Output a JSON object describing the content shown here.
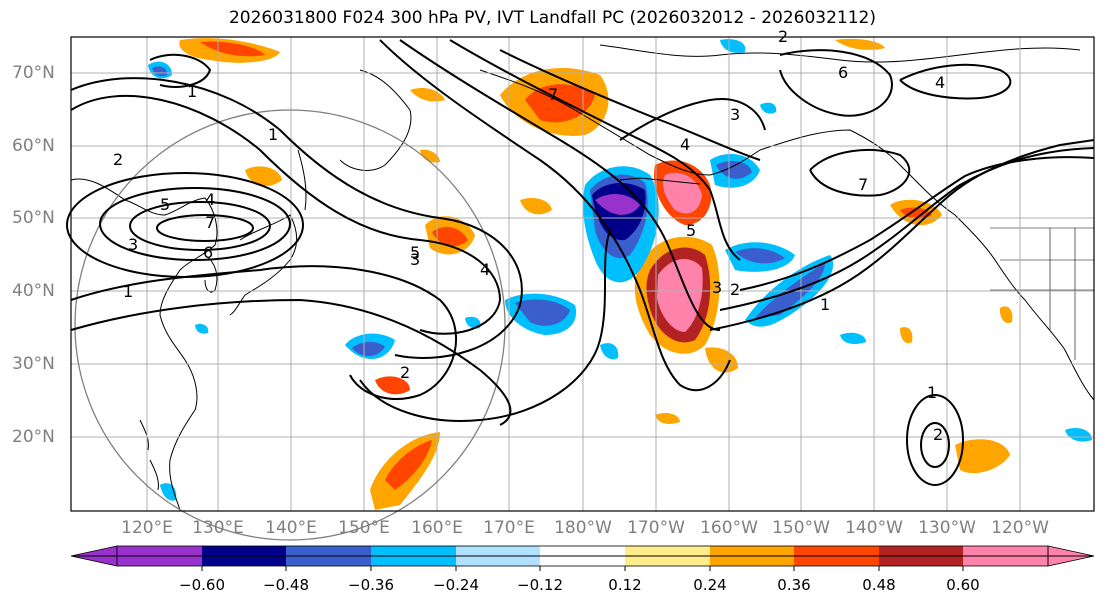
{
  "title": "2026031800 F024 300 hPa PV, IVT Landfall PC (2026032012 - 2026032112)",
  "map": {
    "lon_labels": [
      "120°E",
      "130°E",
      "140°E",
      "150°E",
      "160°E",
      "170°E",
      "180°W",
      "170°W",
      "160°W",
      "150°W",
      "140°W",
      "130°W",
      "120°W"
    ],
    "lat_labels": [
      "70°N",
      "60°N",
      "50°N",
      "40°N",
      "30°N",
      "20°N"
    ],
    "contour_labels": [
      "1",
      "2",
      "3",
      "4",
      "5",
      "6",
      "7",
      "1",
      "2",
      "3",
      "4",
      "5",
      "1",
      "2",
      "3",
      "4",
      "5",
      "7",
      "1",
      "2",
      "3",
      "4",
      "6",
      "7",
      "1",
      "2"
    ],
    "colors": {
      "ocean": "#ffffff",
      "coast": "#000000",
      "grid": "#b0b0b0",
      "circle": "#808080",
      "contour": "#000000"
    }
  },
  "colorbar": {
    "ticks": [
      "−0.60",
      "−0.48",
      "−0.36",
      "−0.24",
      "−0.12",
      "0.12",
      "0.24",
      "0.36",
      "0.48",
      "0.60"
    ],
    "colors": [
      "#9932cc",
      "#00008b",
      "#3a5fcd",
      "#00bfff",
      "#b0e2ff",
      "#ffffff",
      "#ffec8b",
      "#ffa500",
      "#ff4500",
      "#b22222",
      "#ff82ab"
    ]
  }
}
